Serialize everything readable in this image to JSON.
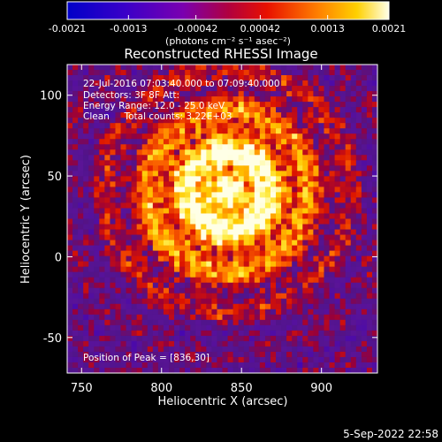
{
  "colorbar": {
    "ticks": [
      "-0.0021",
      "-0.0013",
      "-0.00042",
      "0.00042",
      "0.0013",
      "0.0021"
    ],
    "tick_values": [
      -0.0021,
      -0.0013,
      -0.00042,
      0.00042,
      0.0013,
      0.0021
    ],
    "range": [
      -0.0021,
      0.0021
    ],
    "unit_label": "(photons cm⁻² s⁻¹ asec⁻²)",
    "colors": [
      "#0000c8",
      "#4a00c8",
      "#8000a0",
      "#d00000",
      "#ff6000",
      "#ffd000",
      "#ffffe0"
    ]
  },
  "chart_data": {
    "type": "heatmap",
    "title": "Reconstructed RHESSI Image",
    "xlabel": "Heliocentric X (arcsec)",
    "ylabel": "Heliocentric Y (arcsec)",
    "xlim": [
      741,
      935
    ],
    "ylim": [
      -72,
      119
    ],
    "xticks": [
      750,
      800,
      850,
      900
    ],
    "yticks": [
      -50,
      0,
      50,
      100
    ],
    "annotations": [
      "22-Jul-2016 07:03:40.000 to 07:09:40.000",
      "Detectors: 3F 8F  Att:",
      "Energy Range: 12.0 - 25.0 keV",
      "Clean     Total counts: 3.22E+03"
    ],
    "peak_text": "Position of Peak = [836,30]",
    "peak": [
      836,
      30
    ]
  },
  "footer": {
    "timestamp": "5-Sep-2022 22:58"
  }
}
